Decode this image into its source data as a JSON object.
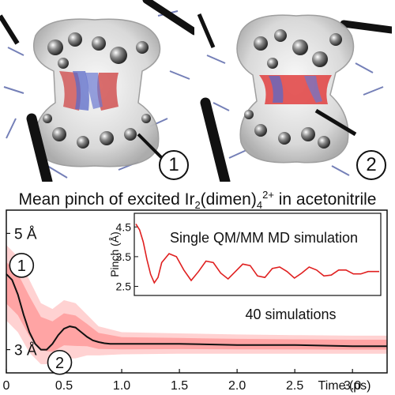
{
  "panels": {
    "left_label": "1",
    "right_label": "2"
  },
  "title": {
    "prefix": "Mean pinch of excited Ir",
    "sub": "2",
    "middle": "(dimen)",
    "sub2": "4",
    "sup": "2+",
    "suffix": " in acetonitrile"
  },
  "colors": {
    "main_line": "#111111",
    "band": "#ff3030",
    "inset_line": "#e02020",
    "axis": "#111111"
  },
  "chart_data": {
    "type": "line",
    "xlabel": "Time (ps)",
    "x_ticks": [
      "0",
      "0.5",
      "1.0",
      "1.5",
      "2.0",
      "2.5",
      "3.0"
    ],
    "xlim": [
      0,
      3.3
    ],
    "ylim": [
      2.6,
      5.4
    ],
    "y_tick_labels": [
      {
        "value": 5.0,
        "label": "5 Å"
      },
      {
        "value": 3.0,
        "label": "3 Å"
      }
    ],
    "markers": [
      {
        "label": "1",
        "x": 0.05,
        "y": 4.45
      },
      {
        "label": "2",
        "x": 0.38,
        "y": 2.78
      }
    ],
    "annotation": "40 simulations",
    "series": [
      {
        "x": [
          0,
          0.05,
          0.1,
          0.15,
          0.2,
          0.25,
          0.3,
          0.35,
          0.4,
          0.45,
          0.5,
          0.55,
          0.6,
          0.65,
          0.7,
          0.75,
          0.8,
          0.85,
          0.9,
          1.0,
          1.2,
          1.5,
          2.0,
          2.5,
          3.0,
          3.3
        ],
        "y": [
          4.3,
          4.2,
          3.95,
          3.6,
          3.3,
          3.1,
          3.0,
          3.0,
          3.1,
          3.25,
          3.36,
          3.4,
          3.38,
          3.3,
          3.22,
          3.16,
          3.13,
          3.11,
          3.1,
          3.1,
          3.1,
          3.1,
          3.08,
          3.08,
          3.06,
          3.06
        ]
      }
    ],
    "band": {
      "x": [
        0,
        0.1,
        0.2,
        0.3,
        0.4,
        0.5,
        0.6,
        0.7,
        0.8,
        1.0,
        1.5,
        2.0,
        2.5,
        3.0,
        3.3
      ],
      "low": [
        3.5,
        3.3,
        2.95,
        2.75,
        2.75,
        2.85,
        2.85,
        2.9,
        2.9,
        2.92,
        2.93,
        2.93,
        2.93,
        2.93,
        2.93
      ],
      "high": [
        4.8,
        4.6,
        4.2,
        3.8,
        3.7,
        3.85,
        3.8,
        3.6,
        3.4,
        3.3,
        3.28,
        3.26,
        3.25,
        3.24,
        3.24
      ]
    },
    "inset": {
      "title": "Single QM/MM MD simulation",
      "ylabel": "Pinch (Å)",
      "y_ticks": [
        4.5,
        3.5,
        2.5
      ],
      "y_tick_labels": [
        "4.5",
        "3.5",
        "2.5"
      ],
      "ylim": [
        2.3,
        4.8
      ],
      "xlim": [
        0,
        3.3
      ],
      "x": [
        0,
        0.05,
        0.1,
        0.15,
        0.2,
        0.25,
        0.3,
        0.35,
        0.45,
        0.55,
        0.65,
        0.75,
        0.85,
        0.95,
        1.05,
        1.15,
        1.25,
        1.35,
        1.45,
        1.55,
        1.65,
        1.75,
        1.85,
        1.95,
        2.05,
        2.15,
        2.25,
        2.35,
        2.45,
        2.55,
        2.65,
        2.75,
        2.85,
        2.95,
        3.05,
        3.15,
        3.3
      ],
      "y": [
        4.6,
        4.4,
        4.0,
        3.4,
        2.9,
        2.62,
        2.8,
        3.3,
        3.6,
        3.5,
        3.05,
        2.7,
        3.0,
        3.35,
        3.3,
        2.95,
        2.75,
        3.0,
        3.25,
        3.2,
        2.85,
        2.8,
        3.1,
        3.15,
        3.0,
        2.78,
        2.95,
        3.15,
        3.05,
        2.85,
        2.88,
        3.05,
        3.05,
        2.92,
        2.92,
        3.0,
        3.0
      ]
    }
  }
}
